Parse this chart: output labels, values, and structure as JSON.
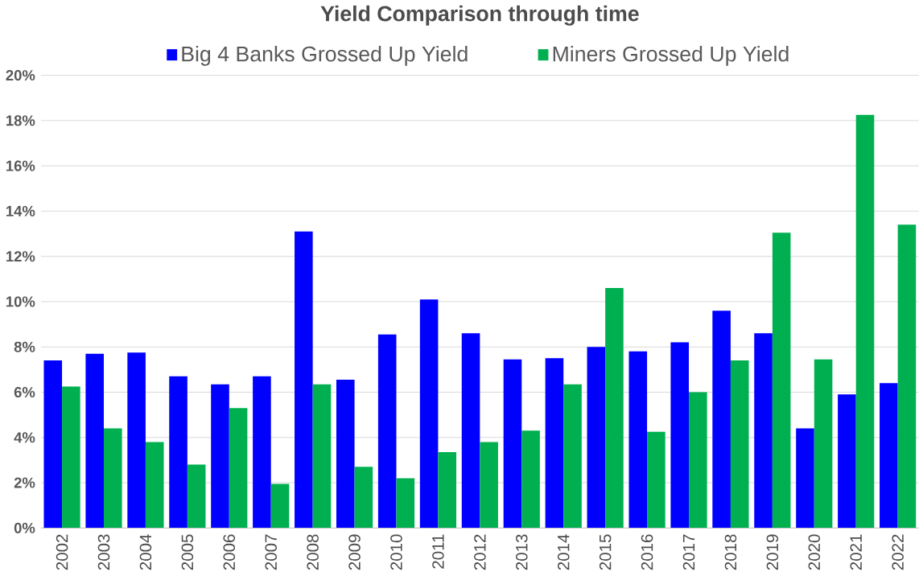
{
  "chart_data": {
    "type": "bar",
    "title": "Yield Comparison through time",
    "categories": [
      "2002",
      "2003",
      "2004",
      "2005",
      "2006",
      "2007",
      "2008",
      "2009",
      "2010",
      "2011",
      "2012",
      "2013",
      "2014",
      "2015",
      "2016",
      "2017",
      "2018",
      "2019",
      "2020",
      "2021",
      "2022"
    ],
    "series": [
      {
        "name": "Big 4 Banks Grossed Up Yield",
        "color": "#0000ff",
        "values": [
          7.4,
          7.7,
          7.75,
          6.7,
          6.35,
          6.7,
          13.1,
          6.55,
          8.55,
          10.1,
          8.6,
          7.45,
          7.5,
          8.0,
          7.8,
          8.2,
          9.6,
          8.6,
          4.4,
          5.9,
          6.4
        ]
      },
      {
        "name": "Miners Grossed Up Yield",
        "color": "#00b050",
        "values": [
          6.25,
          4.4,
          3.8,
          2.8,
          5.3,
          1.95,
          6.35,
          2.7,
          2.2,
          3.35,
          3.8,
          4.3,
          6.35,
          10.6,
          4.25,
          6.0,
          7.4,
          13.05,
          7.45,
          18.25,
          13.4
        ]
      }
    ],
    "ylim": [
      0,
      20
    ],
    "yticks": [
      {
        "value": 0,
        "label": "0%"
      },
      {
        "value": 2,
        "label": "2%"
      },
      {
        "value": 4,
        "label": "4%"
      },
      {
        "value": 6,
        "label": "6%"
      },
      {
        "value": 8,
        "label": "8%"
      },
      {
        "value": 10,
        "label": "10%"
      },
      {
        "value": 12,
        "label": "12%"
      },
      {
        "value": 14,
        "label": "14%"
      },
      {
        "value": 16,
        "label": "16%"
      },
      {
        "value": 18,
        "label": "18%"
      },
      {
        "value": 20,
        "label": "20%"
      }
    ],
    "grid": "y",
    "legend": "top"
  }
}
